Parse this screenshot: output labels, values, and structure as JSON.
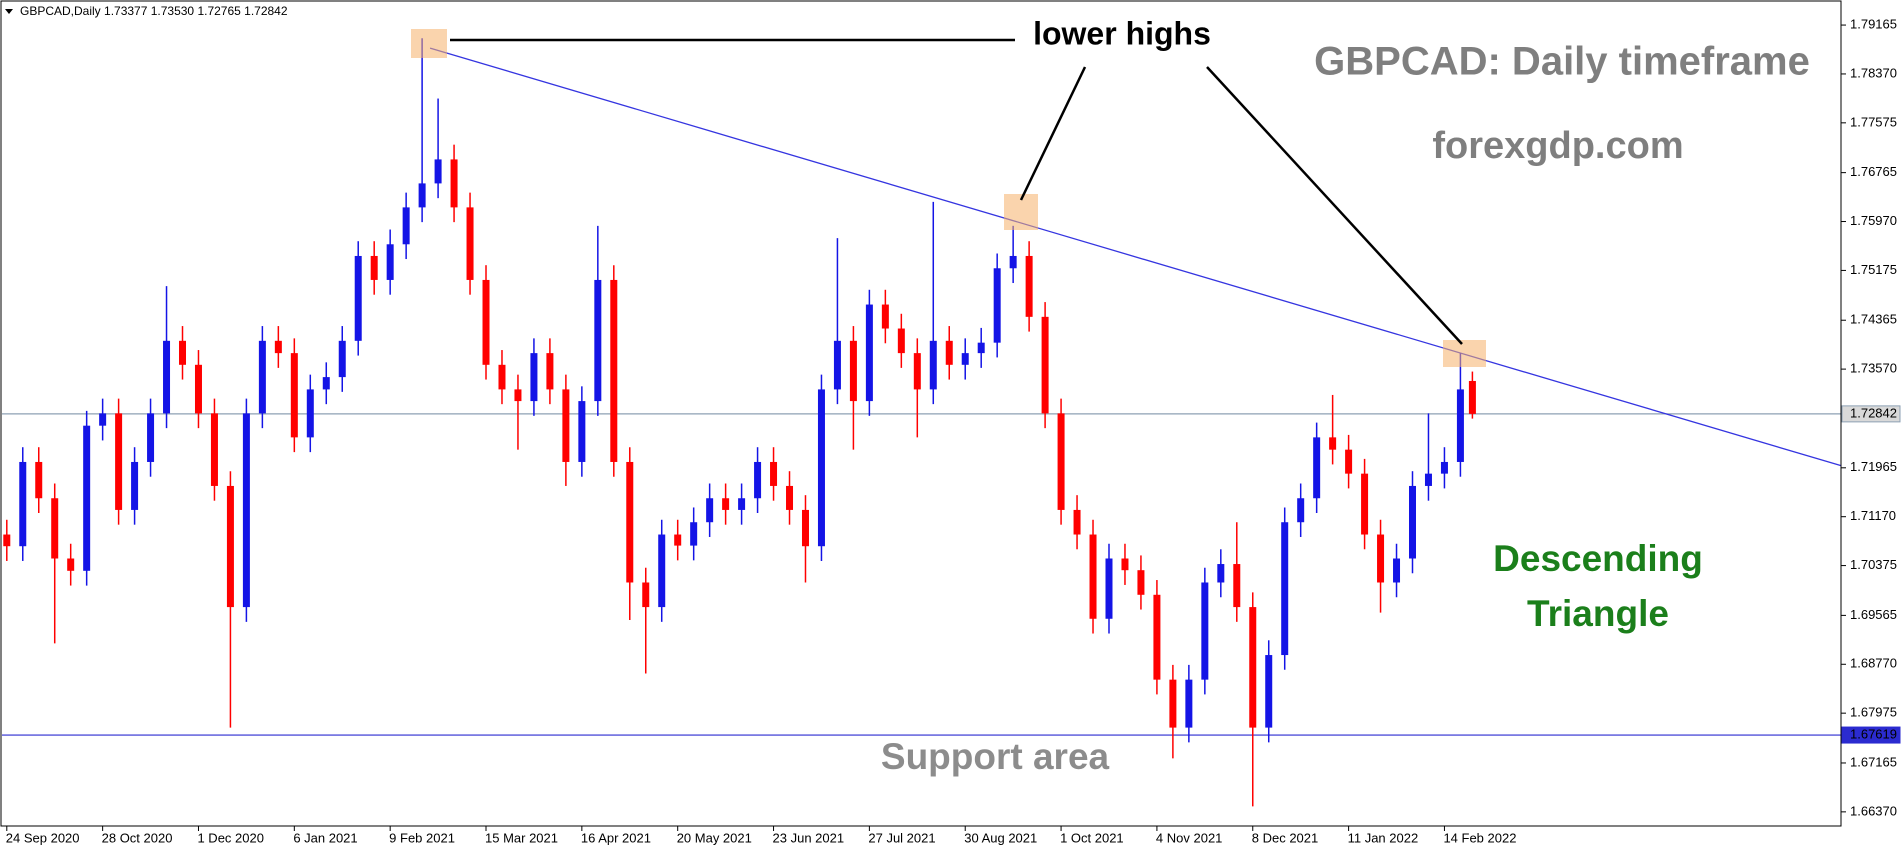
{
  "chart_data": {
    "type": "candlestick",
    "header": "GBPCAD,Daily  1.73377 1.73530 1.72765 1.72842",
    "x": [
      0,
      4,
      8,
      12,
      16,
      20,
      24,
      28,
      32,
      36,
      40,
      44,
      48,
      52,
      56,
      60,
      64,
      68,
      72,
      76,
      80,
      84,
      88,
      92,
      96,
      100,
      104,
      108,
      112,
      116,
      120,
      124,
      128,
      132,
      136,
      140,
      144,
      148,
      152,
      156,
      160,
      164,
      168,
      172,
      176,
      180,
      184,
      188,
      192,
      196,
      200,
      204,
      208,
      212,
      216,
      220,
      224,
      228,
      232,
      236,
      240,
      244,
      248,
      252,
      256,
      260,
      264,
      268,
      272,
      276,
      280,
      284,
      288,
      292,
      296,
      300,
      304,
      308,
      312,
      316,
      320,
      324,
      328,
      332,
      336,
      340,
      344,
      348,
      352,
      356,
      360,
      364,
      367
    ],
    "open": [
      1.7088,
      1.7069,
      1.7206,
      1.7147,
      1.7049,
      1.7029,
      1.7265,
      1.7285,
      1.7128,
      1.7206,
      1.7285,
      1.7403,
      1.7364,
      1.7285,
      1.7167,
      1.697,
      1.7285,
      1.7403,
      1.7383,
      1.7246,
      1.7324,
      1.7344,
      1.7403,
      1.7541,
      1.7502,
      1.756,
      1.762,
      1.7659,
      1.7698,
      1.762,
      1.7502,
      1.7364,
      1.7324,
      1.7305,
      1.7383,
      1.7324,
      1.7206,
      1.7305,
      1.7502,
      1.7206,
      1.701,
      1.697,
      1.7088,
      1.707,
      1.7108,
      1.7147,
      1.7128,
      1.7147,
      1.7206,
      1.7167,
      1.7128,
      1.7069,
      1.7324,
      1.7403,
      1.7305,
      1.7462,
      1.7423,
      1.7383,
      1.7324,
      1.7403,
      1.7364,
      1.7383,
      1.74,
      1.7521,
      1.7541,
      1.7442,
      1.7285,
      1.7128,
      1.7088,
      1.6951,
      1.7049,
      1.703,
      1.699,
      1.6852,
      1.6774,
      1.6852,
      1.701,
      1.704,
      1.697,
      1.6774,
      1.6892,
      1.7108,
      1.7147,
      1.7246,
      1.7226,
      1.7187,
      1.7088,
      1.701,
      1.7049,
      1.7167,
      1.7187,
      1.7206,
      1.73377
    ],
    "high": [
      1.7112,
      1.723,
      1.723,
      1.7171,
      1.7073,
      1.7289,
      1.7309,
      1.7309,
      1.723,
      1.7309,
      1.7492,
      1.7427,
      1.7388,
      1.7309,
      1.7191,
      1.7309,
      1.7427,
      1.7427,
      1.7407,
      1.7348,
      1.7368,
      1.7427,
      1.7565,
      1.7565,
      1.7584,
      1.7644,
      1.7895,
      1.7797,
      1.7722,
      1.7644,
      1.7526,
      1.7388,
      1.7348,
      1.7407,
      1.7407,
      1.7348,
      1.7329,
      1.759,
      1.7526,
      1.723,
      1.7034,
      1.7112,
      1.7112,
      1.7132,
      1.7171,
      1.7171,
      1.7171,
      1.723,
      1.723,
      1.7191,
      1.7152,
      1.7348,
      1.757,
      1.7427,
      1.7486,
      1.7486,
      1.7447,
      1.7407,
      1.7629,
      1.7427,
      1.7407,
      1.7424,
      1.7545,
      1.759,
      1.7565,
      1.7466,
      1.7309,
      1.7152,
      1.7112,
      1.7073,
      1.7073,
      1.7054,
      1.7014,
      1.6876,
      1.6876,
      1.7034,
      1.7064,
      1.7108,
      1.6994,
      1.6916,
      1.7132,
      1.7171,
      1.727,
      1.7315,
      1.725,
      1.7211,
      1.7112,
      1.7073,
      1.7191,
      1.7285,
      1.723,
      1.7383,
      1.7353
    ],
    "low": [
      1.7045,
      1.7045,
      1.7123,
      1.6911,
      1.7005,
      1.7005,
      1.7241,
      1.7104,
      1.7104,
      1.7182,
      1.7261,
      1.734,
      1.7261,
      1.7143,
      1.6774,
      1.6946,
      1.7261,
      1.7359,
      1.7222,
      1.7222,
      1.73,
      1.732,
      1.7379,
      1.7478,
      1.7478,
      1.7536,
      1.7596,
      1.7635,
      1.7596,
      1.7478,
      1.734,
      1.73,
      1.7226,
      1.7281,
      1.73,
      1.7167,
      1.7182,
      1.7281,
      1.7182,
      1.6949,
      1.6862,
      1.6946,
      1.7046,
      1.7046,
      1.7084,
      1.7104,
      1.7104,
      1.7123,
      1.7143,
      1.7104,
      1.701,
      1.7045,
      1.73,
      1.7226,
      1.7281,
      1.7399,
      1.7359,
      1.7246,
      1.73,
      1.734,
      1.734,
      1.7359,
      1.7376,
      1.7497,
      1.7418,
      1.7261,
      1.7104,
      1.7064,
      1.6927,
      1.6927,
      1.7006,
      1.6966,
      1.6828,
      1.6724,
      1.675,
      1.6828,
      1.6986,
      1.6946,
      1.6646,
      1.675,
      1.6868,
      1.7084,
      1.7123,
      1.7202,
      1.7163,
      1.7064,
      1.6961,
      1.6986,
      1.7025,
      1.7143,
      1.7163,
      1.7182,
      1.72765
    ],
    "close": [
      1.7069,
      1.7206,
      1.7147,
      1.7049,
      1.7029,
      1.7265,
      1.7285,
      1.7128,
      1.7206,
      1.7285,
      1.7403,
      1.7364,
      1.7285,
      1.7167,
      1.697,
      1.7285,
      1.7403,
      1.7383,
      1.7246,
      1.7324,
      1.7344,
      1.7403,
      1.7541,
      1.7502,
      1.756,
      1.762,
      1.7659,
      1.7698,
      1.762,
      1.7502,
      1.7364,
      1.7324,
      1.7305,
      1.7383,
      1.7324,
      1.7206,
      1.7305,
      1.7502,
      1.7206,
      1.701,
      1.697,
      1.7088,
      1.707,
      1.7108,
      1.7147,
      1.7128,
      1.7147,
      1.7206,
      1.7167,
      1.7128,
      1.7069,
      1.7324,
      1.7403,
      1.7305,
      1.7462,
      1.7423,
      1.7383,
      1.7324,
      1.7403,
      1.7364,
      1.7383,
      1.74,
      1.7521,
      1.7541,
      1.7442,
      1.7285,
      1.7128,
      1.7088,
      1.6951,
      1.7049,
      1.703,
      1.699,
      1.6852,
      1.6774,
      1.6852,
      1.701,
      1.704,
      1.697,
      1.6774,
      1.6892,
      1.7108,
      1.7147,
      1.7246,
      1.7226,
      1.7187,
      1.7088,
      1.701,
      1.7049,
      1.7167,
      1.7187,
      1.7206,
      1.7324,
      1.72842
    ],
    "up_color": "#1414e6",
    "down_color": "#ff0000",
    "xlim": [
      -1.2,
      459.3
    ],
    "ylim": [
      1.6614,
      1.7954
    ],
    "xticks": [
      {
        "value": 0,
        "label": "24 Sep 2020"
      },
      {
        "value": 24,
        "label": "28 Oct 2020"
      },
      {
        "value": 48,
        "label": "1 Dec 2020"
      },
      {
        "value": 72,
        "label": "6 Jan 2021"
      },
      {
        "value": 96,
        "label": "9 Feb 2021"
      },
      {
        "value": 120,
        "label": "15 Mar 2021"
      },
      {
        "value": 144,
        "label": "16 Apr 2021"
      },
      {
        "value": 168,
        "label": "20 May 2021"
      },
      {
        "value": 192,
        "label": "23 Jun 2021"
      },
      {
        "value": 216,
        "label": "27 Jul 2021"
      },
      {
        "value": 240,
        "label": "30 Aug 2021"
      },
      {
        "value": 264,
        "label": "1 Oct 2021"
      },
      {
        "value": 288,
        "label": "4 Nov 2021"
      },
      {
        "value": 312,
        "label": "8 Dec 2021"
      },
      {
        "value": 336,
        "label": "11 Jan 2022"
      },
      {
        "value": 360,
        "label": "14 Feb 2022"
      }
    ],
    "yticks": [
      1.79165,
      {
        "value": 1.7837,
        "label": "1.78370"
      },
      1.77575,
      1.76765,
      {
        "value": 1.7597,
        "label": "1.75970"
      },
      1.75175,
      1.74365,
      {
        "value": 1.7357,
        "label": "1.73570"
      },
      1.71965,
      {
        "value": 1.7117,
        "label": "1.71170"
      },
      1.70375,
      1.69565,
      {
        "value": 1.6877,
        "label": "1.68770"
      },
      1.67975,
      1.67165,
      {
        "value": 1.6637,
        "label": "1.66370"
      }
    ],
    "current_price": 1.72842,
    "current_price_color": "#8da0b4",
    "support_level": 1.67619,
    "support_color": "#2b2bd0",
    "trendline": {
      "x": [
        106,
        459.3
      ],
      "y": [
        1.7879,
        1.72
      ],
      "color": "#3535e0"
    },
    "annotations": {
      "lower_highs": "lower highs",
      "title": "GBPCAD: Daily timeframe",
      "site": "forexgdp.com",
      "pattern_line1": "Descending",
      "pattern_line2": "Triangle",
      "support": "Support area"
    }
  }
}
